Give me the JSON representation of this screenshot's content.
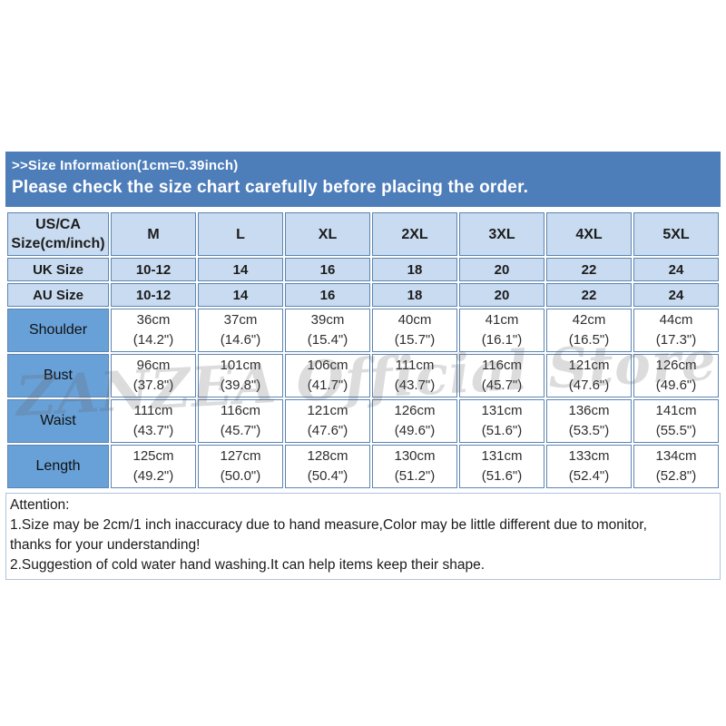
{
  "colors": {
    "banner_blue": "#4e7eba",
    "cell_light": "#c8dbf0",
    "cell_medium": "#68a1d8",
    "border_blue": "#5c85b2",
    "attention_border": "#aec4dc"
  },
  "banner": {
    "title": ">>Size Information(1cm=0.39inch)",
    "notice": "Please check the size chart carefully before placing the order."
  },
  "table": {
    "corner": {
      "line1": "US/CA",
      "line2": "Size(cm/inch)"
    },
    "columns": [
      "M",
      "L",
      "XL",
      "2XL",
      "3XL",
      "4XL",
      "5XL"
    ],
    "uk": {
      "label": "UK Size",
      "values": [
        "10-12",
        "14",
        "16",
        "18",
        "20",
        "22",
        "24"
      ]
    },
    "au": {
      "label": "AU Size",
      "values": [
        "10-12",
        "14",
        "16",
        "18",
        "20",
        "22",
        "24"
      ]
    },
    "rows": [
      {
        "label": "Shoulder",
        "values": [
          {
            "cm": "36cm",
            "inch": "(14.2\")"
          },
          {
            "cm": "37cm",
            "inch": "(14.6\")"
          },
          {
            "cm": "39cm",
            "inch": "(15.4\")"
          },
          {
            "cm": "40cm",
            "inch": "(15.7\")"
          },
          {
            "cm": "41cm",
            "inch": "(16.1\")"
          },
          {
            "cm": "42cm",
            "inch": "(16.5\")"
          },
          {
            "cm": "44cm",
            "inch": "(17.3\")"
          }
        ]
      },
      {
        "label": "Bust",
        "values": [
          {
            "cm": "96cm",
            "inch": "(37.8\")"
          },
          {
            "cm": "101cm",
            "inch": "(39.8\")"
          },
          {
            "cm": "106cm",
            "inch": "(41.7\")"
          },
          {
            "cm": "111cm",
            "inch": "(43.7\")"
          },
          {
            "cm": "116cm",
            "inch": "(45.7\")"
          },
          {
            "cm": "121cm",
            "inch": "(47.6\")"
          },
          {
            "cm": "126cm",
            "inch": "(49.6\")"
          }
        ]
      },
      {
        "label": "Waist",
        "values": [
          {
            "cm": "111cm",
            "inch": "(43.7\")"
          },
          {
            "cm": "116cm",
            "inch": "(45.7\")"
          },
          {
            "cm": "121cm",
            "inch": "(47.6\")"
          },
          {
            "cm": "126cm",
            "inch": "(49.6\")"
          },
          {
            "cm": "131cm",
            "inch": "(51.6\")"
          },
          {
            "cm": "136cm",
            "inch": "(53.5\")"
          },
          {
            "cm": "141cm",
            "inch": "(55.5\")"
          }
        ]
      },
      {
        "label": "Length",
        "values": [
          {
            "cm": "125cm",
            "inch": "(49.2\")"
          },
          {
            "cm": "127cm",
            "inch": "(50.0\")"
          },
          {
            "cm": "128cm",
            "inch": "(50.4\")"
          },
          {
            "cm": "130cm",
            "inch": "(51.2\")"
          },
          {
            "cm": "131cm",
            "inch": "(51.6\")"
          },
          {
            "cm": "133cm",
            "inch": "(52.4\")"
          },
          {
            "cm": "134cm",
            "inch": "(52.8\")"
          }
        ]
      }
    ]
  },
  "attention": {
    "title": "Attention:",
    "line1": "1.Size may be 2cm/1 inch inaccuracy due to hand measure,Color may be little different due to monitor,",
    "line2": "thanks for your understanding!",
    "line3": "2.Suggestion of cold water hand washing.It can help items keep their shape."
  },
  "watermark": {
    "text": "ZANZEA Official Store"
  },
  "chart_data": {
    "type": "table",
    "title": "Size Information(1cm=0.39inch)",
    "columns": [
      "US/CA Size(cm/inch)",
      "M",
      "L",
      "XL",
      "2XL",
      "3XL",
      "4XL",
      "5XL"
    ],
    "rows": [
      [
        "UK Size",
        "10-12",
        "14",
        "16",
        "18",
        "20",
        "22",
        "24"
      ],
      [
        "AU Size",
        "10-12",
        "14",
        "16",
        "18",
        "20",
        "22",
        "24"
      ],
      [
        "Shoulder",
        "36cm (14.2\")",
        "37cm (14.6\")",
        "39cm (15.4\")",
        "40cm (15.7\")",
        "41cm (16.1\")",
        "42cm (16.5\")",
        "44cm (17.3\")"
      ],
      [
        "Bust",
        "96cm (37.8\")",
        "101cm (39.8\")",
        "106cm (41.7\")",
        "111cm (43.7\")",
        "116cm (45.7\")",
        "121cm (47.6\")",
        "126cm (49.6\")"
      ],
      [
        "Waist",
        "111cm (43.7\")",
        "116cm (45.7\")",
        "121cm (47.6\")",
        "126cm (49.6\")",
        "131cm (51.6\")",
        "136cm (53.5\")",
        "141cm (55.5\")"
      ],
      [
        "Length",
        "125cm (49.2\")",
        "127cm (50.0\")",
        "128cm (50.4\")",
        "130cm (51.2\")",
        "131cm (51.6\")",
        "133cm (52.4\")",
        "134cm (52.8\")"
      ]
    ]
  }
}
